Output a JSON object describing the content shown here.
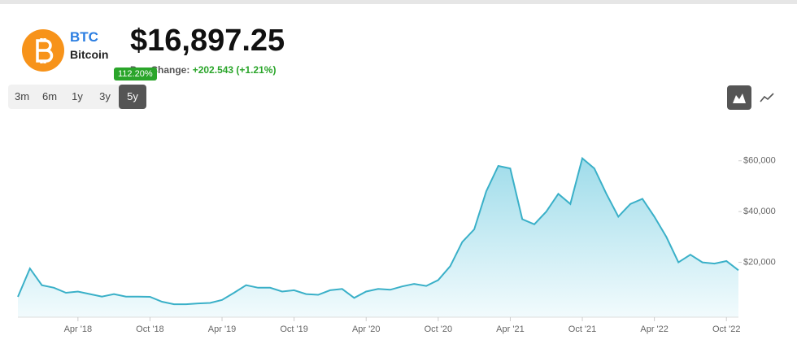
{
  "header": {
    "symbol": "BTC",
    "name": "Bitcoin",
    "price": "$16,897.25",
    "change_label": "Day Change:",
    "change_value": "+202.543 (+1.21%)",
    "badge": "112.20%"
  },
  "ranges": [
    "3m",
    "6m",
    "1y",
    "3y",
    "5y"
  ],
  "selected_range": 4,
  "chart_data": {
    "type": "area",
    "color": "#3ab0c8",
    "categories": [
      null,
      null,
      null,
      null,
      null,
      "Apr '18",
      null,
      null,
      null,
      null,
      null,
      "Oct '18",
      null,
      null,
      null,
      null,
      null,
      "Apr '19",
      null,
      null,
      null,
      null,
      null,
      "Oct '19",
      null,
      null,
      null,
      null,
      null,
      "Apr '20",
      null,
      null,
      null,
      null,
      null,
      "Oct '20",
      null,
      null,
      null,
      null,
      null,
      "Apr '21",
      null,
      null,
      null,
      null,
      null,
      "Oct '21",
      null,
      null,
      null,
      null,
      null,
      "Apr '22",
      null,
      null,
      null,
      null,
      null,
      "Oct '22",
      null
    ],
    "values": [
      6400,
      17600,
      11000,
      10000,
      8000,
      8500,
      7500,
      6500,
      7500,
      6500,
      6500,
      6400,
      4500,
      3500,
      3500,
      3800,
      4000,
      5200,
      8000,
      11000,
      10000,
      10000,
      8500,
      9000,
      7500,
      7200,
      9000,
      9500,
      6000,
      8500,
      9500,
      9200,
      10500,
      11500,
      10700,
      13000,
      18500,
      28000,
      33000,
      48000,
      58000,
      57000,
      37000,
      35000,
      40000,
      47000,
      43000,
      61000,
      57000,
      47000,
      38000,
      43000,
      45000,
      38000,
      30000,
      20000,
      23000,
      20000,
      19500,
      20500,
      16900
    ],
    "ylim": [
      0,
      66000
    ],
    "yticks": [
      {
        "value": 20000,
        "label": "$20,000"
      },
      {
        "value": 40000,
        "label": "$40,000"
      },
      {
        "value": 60000,
        "label": "$60,000"
      }
    ]
  }
}
